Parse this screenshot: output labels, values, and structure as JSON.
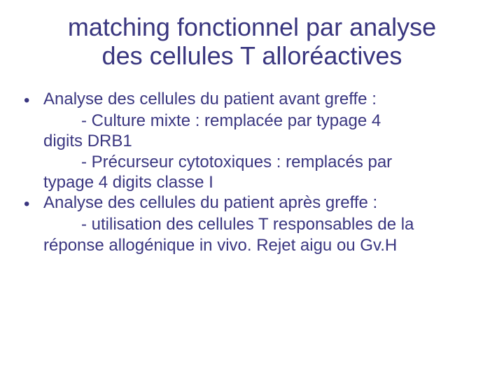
{
  "colors": {
    "title": "#39367f",
    "body": "#3a3680",
    "bullet": "#3a3680",
    "background": "#ffffff"
  },
  "typography": {
    "title_fontsize": 36,
    "body_fontsize": 24,
    "font_family": "Arial"
  },
  "type": "document",
  "title_line1": "matching fonctionnel par analyse",
  "title_line2": "des cellules T alloréactives",
  "bullets": [
    {
      "lead": "Analyse des cellules du patient avant greffe :",
      "subs": [
        {
          "indent_text": "- Culture mixte : remplacée par typage 4",
          "cont_text": "digits DRB1"
        },
        {
          "indent_text": "- Précurseur cytotoxiques : remplacés par",
          "cont_text": "typage 4 digits classe I"
        }
      ]
    },
    {
      "lead": "Analyse des cellules du patient après greffe :",
      "subs": [
        {
          "indent_text": "- utilisation des cellules T responsables de la",
          "cont_text": "réponse allogénique in vivo. Rejet aigu ou Gv.H"
        }
      ]
    }
  ],
  "bullet_glyph": "•"
}
